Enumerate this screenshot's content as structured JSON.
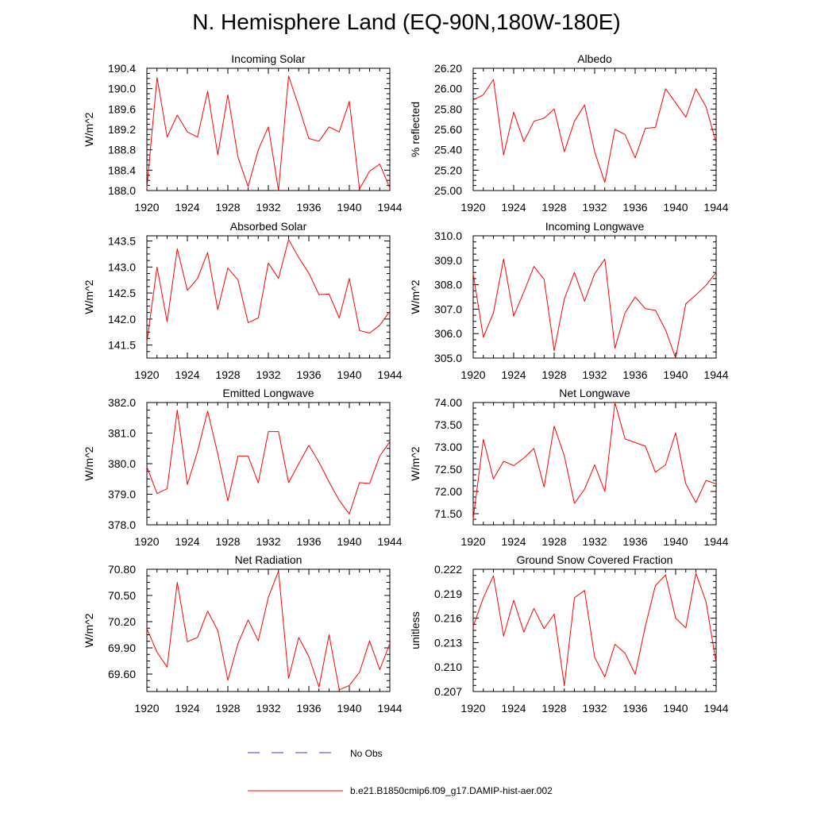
{
  "title": "N. Hemisphere Land (EQ-90N,180W-180E)",
  "colors": {
    "model_line": "#ff0000",
    "obs_line": "#3b3bd6",
    "axis": "#000000"
  },
  "legend": {
    "obs_label": "No Obs",
    "model_label": "b.e21.B1850cmip6.f09_g17.DAMIP-hist-aer.002"
  },
  "chart_data": [
    {
      "type": "line",
      "title": "Incoming Solar",
      "ylabel": "W/m^2",
      "xlim": [
        1920,
        1944
      ],
      "ylim": [
        188.0,
        190.4
      ],
      "xticks": [
        "1920",
        "1924",
        "1928",
        "1932",
        "1936",
        "1940",
        "1944"
      ],
      "yticks": [
        "188.0",
        "188.4",
        "188.8",
        "189.2",
        "189.6",
        "190.0",
        "190.4"
      ],
      "series": [
        {
          "x": [
            1920,
            1921,
            1922,
            1923,
            1924,
            1925,
            1926,
            1927,
            1928,
            1929,
            1930,
            1931,
            1932,
            1933,
            1934,
            1935,
            1936,
            1937,
            1938,
            1939,
            1940,
            1941,
            1942,
            1943,
            1944
          ],
          "values": [
            188.05,
            190.22,
            189.05,
            189.48,
            189.15,
            189.05,
            189.95,
            188.7,
            189.88,
            188.65,
            188.08,
            188.8,
            189.25,
            188.0,
            190.25,
            189.65,
            189.02,
            188.97,
            189.25,
            189.15,
            189.75,
            188.03,
            188.38,
            188.52,
            188.05
          ]
        }
      ]
    },
    {
      "type": "line",
      "title": "Albedo",
      "ylabel": "% reflected",
      "xlim": [
        1920,
        1944
      ],
      "ylim": [
        25.0,
        26.2
      ],
      "xticks": [
        "1920",
        "1924",
        "1928",
        "1932",
        "1936",
        "1940",
        "1944"
      ],
      "yticks": [
        "25.00",
        "25.20",
        "25.40",
        "25.60",
        "25.80",
        "26.00",
        "26.20"
      ],
      "series": [
        {
          "x": [
            1920,
            1921,
            1922,
            1923,
            1924,
            1925,
            1926,
            1927,
            1928,
            1929,
            1930,
            1931,
            1932,
            1933,
            1934,
            1935,
            1936,
            1937,
            1938,
            1939,
            1940,
            1941,
            1942,
            1943,
            1944
          ],
          "values": [
            25.89,
            25.94,
            26.09,
            25.35,
            25.77,
            25.48,
            25.68,
            25.71,
            25.8,
            25.38,
            25.68,
            25.84,
            25.38,
            25.08,
            25.6,
            25.55,
            25.32,
            25.61,
            25.62,
            26.0,
            25.86,
            25.72,
            26.0,
            25.82,
            25.47
          ]
        }
      ]
    },
    {
      "type": "line",
      "title": "Absorbed Solar",
      "ylabel": "W/m^2",
      "xlim": [
        1920,
        1944
      ],
      "ylim": [
        141.25,
        143.6
      ],
      "xticks": [
        "1920",
        "1924",
        "1928",
        "1932",
        "1936",
        "1940",
        "1944"
      ],
      "yticks": [
        "141.5",
        "142.0",
        "142.5",
        "143.0",
        "143.5"
      ],
      "series": [
        {
          "x": [
            1920,
            1921,
            1922,
            1923,
            1924,
            1925,
            1926,
            1927,
            1928,
            1929,
            1930,
            1931,
            1932,
            1933,
            1934,
            1935,
            1936,
            1937,
            1938,
            1939,
            1940,
            1941,
            1942,
            1943,
            1944
          ],
          "values": [
            141.55,
            143.0,
            141.95,
            143.35,
            142.55,
            142.78,
            143.28,
            142.18,
            142.98,
            142.75,
            141.93,
            142.02,
            143.08,
            142.78,
            143.53,
            143.18,
            142.88,
            142.47,
            142.48,
            142.02,
            142.78,
            141.78,
            141.73,
            141.88,
            142.15
          ]
        }
      ]
    },
    {
      "type": "line",
      "title": "Incoming Longwave",
      "ylabel": "W/m^2",
      "xlim": [
        1920,
        1944
      ],
      "ylim": [
        305.0,
        310.0
      ],
      "xticks": [
        "1920",
        "1924",
        "1928",
        "1932",
        "1936",
        "1940",
        "1944"
      ],
      "yticks": [
        "305.0",
        "306.0",
        "307.0",
        "308.0",
        "309.0",
        "310.0"
      ],
      "series": [
        {
          "x": [
            1920,
            1921,
            1922,
            1923,
            1924,
            1925,
            1926,
            1927,
            1928,
            1929,
            1930,
            1931,
            1932,
            1933,
            1934,
            1935,
            1936,
            1937,
            1938,
            1939,
            1940,
            1941,
            1942,
            1943,
            1944
          ],
          "values": [
            308.45,
            305.85,
            306.85,
            309.05,
            306.72,
            307.7,
            308.75,
            308.22,
            305.3,
            307.42,
            308.5,
            307.32,
            308.45,
            309.05,
            305.4,
            306.85,
            307.5,
            307.02,
            306.95,
            306.15,
            305.0,
            307.22,
            307.58,
            307.98,
            308.5
          ]
        }
      ]
    },
    {
      "type": "line",
      "title": "Emitted Longwave",
      "ylabel": "W/m^2",
      "xlim": [
        1920,
        1944
      ],
      "ylim": [
        378.0,
        382.0
      ],
      "xticks": [
        "1920",
        "1924",
        "1928",
        "1932",
        "1936",
        "1940",
        "1944"
      ],
      "yticks": [
        "378.0",
        "379.0",
        "380.0",
        "381.0",
        "382.0"
      ],
      "series": [
        {
          "x": [
            1920,
            1921,
            1922,
            1923,
            1924,
            1925,
            1926,
            1927,
            1928,
            1929,
            1930,
            1931,
            1932,
            1933,
            1934,
            1935,
            1936,
            1937,
            1938,
            1939,
            1940,
            1941,
            1942,
            1943,
            1944
          ],
          "values": [
            379.9,
            379.02,
            379.18,
            381.75,
            379.32,
            380.4,
            381.72,
            380.32,
            378.78,
            380.25,
            380.25,
            379.37,
            381.05,
            381.05,
            379.38,
            380.0,
            380.6,
            380.05,
            379.4,
            378.8,
            378.35,
            379.38,
            379.35,
            380.25,
            380.72
          ]
        }
      ]
    },
    {
      "type": "line",
      "title": "Net Longwave",
      "ylabel": "W/m^2",
      "xlim": [
        1920,
        1944
      ],
      "ylim": [
        71.25,
        74.0
      ],
      "xticks": [
        "1920",
        "1924",
        "1928",
        "1932",
        "1936",
        "1940",
        "1944"
      ],
      "yticks": [
        "71.50",
        "72.00",
        "72.50",
        "73.00",
        "73.50",
        "74.00"
      ],
      "series": [
        {
          "x": [
            1920,
            1921,
            1922,
            1923,
            1924,
            1925,
            1926,
            1927,
            1928,
            1929,
            1930,
            1931,
            1932,
            1933,
            1934,
            1935,
            1936,
            1937,
            1938,
            1939,
            1940,
            1941,
            1942,
            1943,
            1944
          ],
          "values": [
            71.38,
            73.17,
            72.28,
            72.68,
            72.58,
            72.75,
            72.97,
            72.1,
            73.47,
            72.8,
            71.73,
            72.05,
            72.6,
            72.0,
            74.0,
            73.18,
            73.1,
            73.02,
            72.43,
            72.6,
            73.32,
            72.17,
            71.75,
            72.25,
            72.17
          ]
        }
      ]
    },
    {
      "type": "line",
      "title": "Net Radiation",
      "ylabel": "W/m^2",
      "xlim": [
        1920,
        1944
      ],
      "ylim": [
        69.4,
        70.8
      ],
      "xticks": [
        "1920",
        "1924",
        "1928",
        "1932",
        "1936",
        "1940",
        "1944"
      ],
      "yticks": [
        "69.60",
        "69.90",
        "70.20",
        "70.50",
        "70.80"
      ],
      "series": [
        {
          "x": [
            1920,
            1921,
            1922,
            1923,
            1924,
            1925,
            1926,
            1927,
            1928,
            1929,
            1930,
            1931,
            1932,
            1933,
            1934,
            1935,
            1936,
            1937,
            1938,
            1939,
            1940,
            1941,
            1942,
            1943,
            1944
          ],
          "values": [
            70.12,
            69.85,
            69.68,
            70.65,
            69.97,
            70.02,
            70.32,
            70.1,
            69.53,
            69.95,
            70.22,
            69.98,
            70.48,
            70.78,
            69.55,
            70.02,
            69.8,
            69.45,
            70.05,
            69.42,
            69.47,
            69.62,
            69.98,
            69.65,
            69.95
          ]
        }
      ]
    },
    {
      "type": "line",
      "title": "Ground Snow Covered Fraction",
      "ylabel": "unitless",
      "xlim": [
        1920,
        1944
      ],
      "ylim": [
        0.207,
        0.222
      ],
      "xticks": [
        "1920",
        "1924",
        "1928",
        "1932",
        "1936",
        "1940",
        "1944"
      ],
      "yticks": [
        "0.207",
        "0.210",
        "0.213",
        "0.216",
        "0.219",
        "0.222"
      ],
      "series": [
        {
          "x": [
            1920,
            1921,
            1922,
            1923,
            1924,
            1925,
            1926,
            1927,
            1928,
            1929,
            1930,
            1931,
            1932,
            1933,
            1934,
            1935,
            1936,
            1937,
            1938,
            1939,
            1940,
            1941,
            1942,
            1943,
            1944
          ],
          "values": [
            0.215,
            0.2185,
            0.2212,
            0.2138,
            0.2182,
            0.2143,
            0.2172,
            0.2147,
            0.2165,
            0.2077,
            0.2185,
            0.2194,
            0.2112,
            0.2088,
            0.2128,
            0.2117,
            0.2091,
            0.215,
            0.22,
            0.2213,
            0.216,
            0.2148,
            0.2215,
            0.218,
            0.2105
          ]
        }
      ]
    }
  ]
}
